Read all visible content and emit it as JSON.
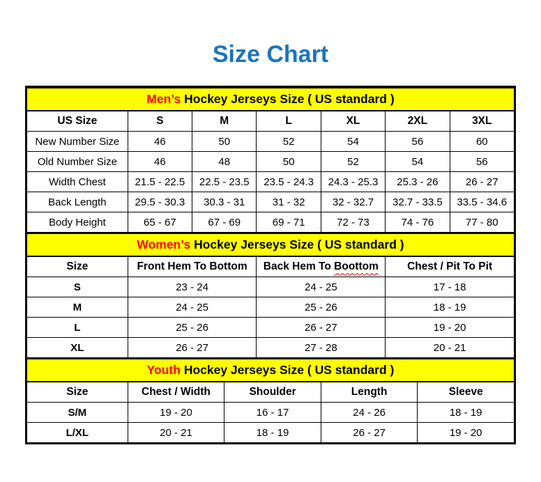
{
  "page": {
    "title": "Size Chart"
  },
  "colors": {
    "title_blue": "#1B75BC",
    "highlight_red": "#FF0000",
    "band_yellow": "#FFFF00",
    "border_black": "#000000",
    "squiggle_red": "#C00000"
  },
  "sections": [
    {
      "id": "mens",
      "heading_highlight": "Men’s",
      "heading_rest": "Hockey Jerseys Size ( US standard )",
      "columns": [
        "US Size",
        "S",
        "M",
        "L",
        "XL",
        "2XL",
        "3XL"
      ],
      "bold_row_labels": false,
      "rows": [
        {
          "label": "New Number Size",
          "values": [
            "46",
            "50",
            "52",
            "54",
            "56",
            "60"
          ]
        },
        {
          "label": "Old Number Size",
          "values": [
            "46",
            "48",
            "50",
            "52",
            "54",
            "56"
          ]
        },
        {
          "label": "Width Chest",
          "values": [
            "21.5 - 22.5",
            "22.5 - 23.5",
            "23.5 - 24.3",
            "24.3 - 25.3",
            "25.3 - 26",
            "26 - 27"
          ]
        },
        {
          "label": "Back Length",
          "values": [
            "29.5 - 30.3",
            "30.3 - 31",
            "31 - 32",
            "32 - 32.7",
            "32.7 - 33.5",
            "33.5 - 34.6"
          ]
        },
        {
          "label": "Body Height",
          "values": [
            "65 - 67",
            "67 - 69",
            "69 - 71",
            "72 - 73",
            "74 - 76",
            "77 - 80"
          ]
        }
      ]
    },
    {
      "id": "womens",
      "heading_highlight": "Women’s",
      "heading_rest": "Hockey Jerseys Size ( US standard )",
      "columns": [
        "Size",
        "Front Hem To Bottom",
        "Back Hem To Boottom",
        "Chest / Pit To Pit"
      ],
      "squiggle": {
        "column_index": 2,
        "prefix": "Back Hem To ",
        "word": "Boottom"
      },
      "bold_row_labels": true,
      "rows": [
        {
          "label": "S",
          "values": [
            "23 - 24",
            "24 - 25",
            "17 - 18"
          ]
        },
        {
          "label": "M",
          "values": [
            "24 - 25",
            "25 - 26",
            "18 - 19"
          ]
        },
        {
          "label": "L",
          "values": [
            "25 - 26",
            "26 - 27",
            "19 - 20"
          ]
        },
        {
          "label": "XL",
          "values": [
            "26 - 27",
            "27 - 28",
            "20 - 21"
          ]
        }
      ]
    },
    {
      "id": "youth",
      "heading_highlight": "Youth",
      "heading_rest": "Hockey Jerseys Size ( US standard )",
      "columns": [
        "Size",
        "Chest / Width",
        "Shoulder",
        "Length",
        "Sleeve"
      ],
      "bold_row_labels": true,
      "rows": [
        {
          "label": "S/M",
          "values": [
            "19 - 20",
            "16 - 17",
            "24 - 26",
            "18 - 19"
          ]
        },
        {
          "label": "L/XL",
          "values": [
            "20 - 21",
            "18 - 19",
            "26 - 27",
            "19 - 20"
          ]
        }
      ]
    }
  ]
}
